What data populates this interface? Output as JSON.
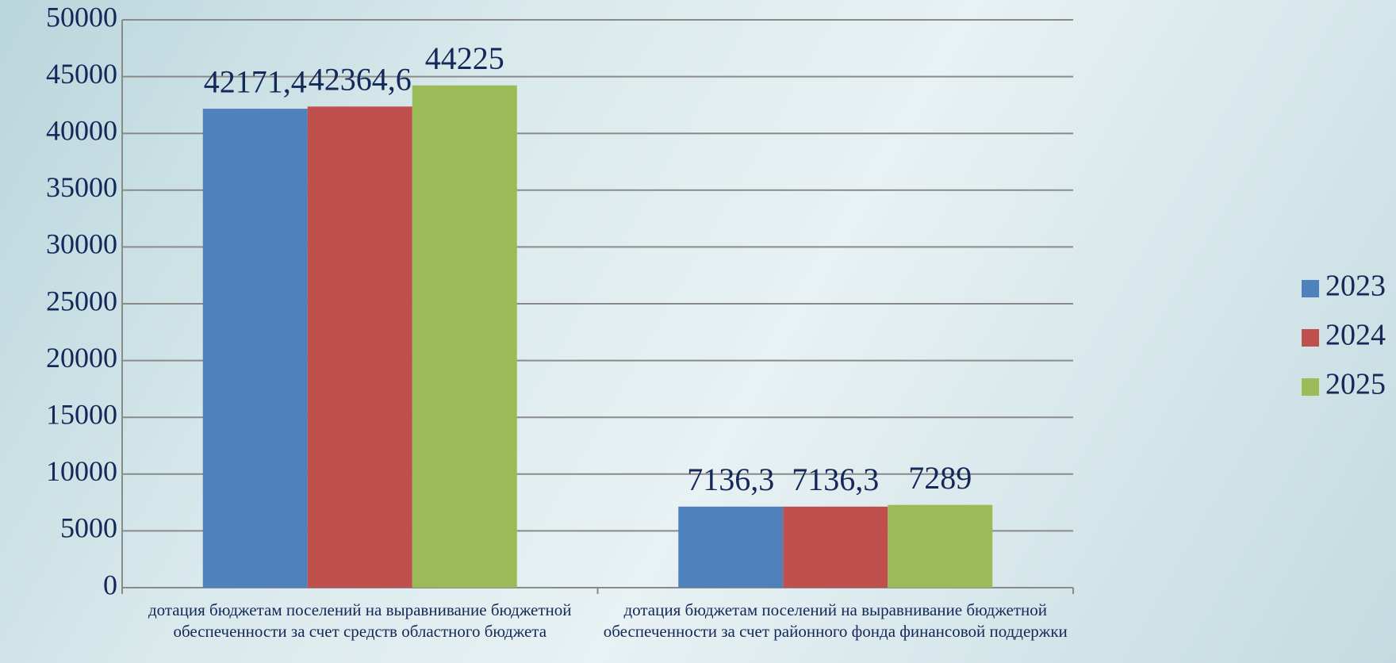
{
  "chart_data": {
    "type": "bar",
    "categories": [
      "дотация бюджетам поселений на выравнивание бюджетной обеспеченности за счет средств областного бюджета",
      "дотация бюджетам поселений на выравнивание бюджетной обеспеченности за счет районного фонда финансовой поддержки"
    ],
    "series": [
      {
        "name": "2023",
        "color": "#4f81bd",
        "values": [
          42171.4,
          7136.3
        ],
        "value_labels": [
          "42171,4",
          "7136,3"
        ]
      },
      {
        "name": "2024",
        "color": "#c0504d",
        "values": [
          42364.6,
          7136.3
        ],
        "value_labels": [
          "42364,6",
          "7136,3"
        ]
      },
      {
        "name": "2025",
        "color": "#9bbb59",
        "values": [
          44225,
          7289
        ]
      }
    ],
    "ylim": [
      0,
      50000
    ],
    "yticks": [
      0,
      5000,
      10000,
      15000,
      20000,
      25000,
      30000,
      35000,
      40000,
      45000,
      50000
    ],
    "grid": true,
    "legend": "right"
  }
}
